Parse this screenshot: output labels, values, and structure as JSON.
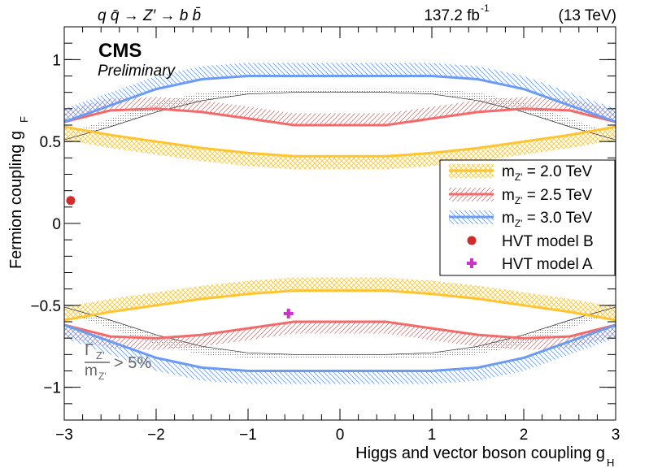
{
  "header": {
    "process": "q q̄ → Z′ → b b̄",
    "lumi": "137.2 fb",
    "lumi_exp": "-1",
    "energy": "(13 TeV)",
    "cms": "CMS",
    "preliminary": "Preliminary"
  },
  "width_note": {
    "numerator": "Γ",
    "numerator_sub": "Z'",
    "denominator": "m",
    "denominator_sub": "Z'",
    "relation": "> 5%"
  },
  "chart_data": {
    "type": "line",
    "xlabel": "Higgs and vector boson coupling g",
    "xlabel_sub": "H",
    "ylabel": "Fermion coupling g",
    "ylabel_sub": "F",
    "xlim": [
      -3,
      3
    ],
    "ylim": [
      -1.2,
      1.2
    ],
    "x_ticks": [
      -3,
      -2,
      -1,
      0,
      1,
      2,
      3
    ],
    "y_ticks": [
      -1,
      -0.5,
      0,
      0.5,
      1
    ],
    "x_tick_labels": [
      "−3",
      "−2",
      "−1",
      "0",
      "1",
      "2",
      "3"
    ],
    "y_tick_labels": [
      "−1",
      "−0.5",
      "0",
      "0.5",
      "1"
    ],
    "grid": false,
    "legend_position": "right",
    "series": [
      {
        "name": "m_Z' = 2.0 TeV",
        "color": "#ffc42e",
        "hatch": "cross",
        "x": [
          -3,
          -2.5,
          -2,
          -1.5,
          -1,
          -0.5,
          0,
          0.5,
          1,
          1.5,
          2,
          2.5,
          3
        ],
        "upper": [
          0.59,
          0.54,
          0.5,
          0.46,
          0.43,
          0.41,
          0.41,
          0.41,
          0.43,
          0.46,
          0.5,
          0.54,
          0.59
        ],
        "lower": [
          -0.59,
          -0.54,
          -0.5,
          -0.46,
          -0.43,
          -0.41,
          -0.41,
          -0.41,
          -0.43,
          -0.46,
          -0.5,
          -0.54,
          -0.59
        ]
      },
      {
        "name": "m_Z' = 2.5 TeV",
        "color": "#f46a6a",
        "hatch": "diagonal",
        "x": [
          -3,
          -2.5,
          -2,
          -1.5,
          -1,
          -0.5,
          0,
          0.5,
          1,
          1.5,
          2,
          2.5,
          3
        ],
        "upper": [
          0.62,
          0.69,
          0.7,
          0.68,
          0.64,
          0.6,
          0.6,
          0.6,
          0.64,
          0.68,
          0.7,
          0.69,
          0.62
        ],
        "lower": [
          -0.62,
          -0.69,
          -0.7,
          -0.68,
          -0.64,
          -0.6,
          -0.6,
          -0.6,
          -0.64,
          -0.68,
          -0.7,
          -0.69,
          -0.62
        ]
      },
      {
        "name": "m_Z' = 3.0 TeV",
        "color": "#6b9bf2",
        "hatch": "diagonal-reverse",
        "x": [
          -3,
          -2.5,
          -2,
          -1.5,
          -1,
          -0.5,
          0,
          0.5,
          1,
          1.5,
          2,
          2.5,
          3
        ],
        "upper": [
          0.62,
          0.72,
          0.82,
          0.88,
          0.9,
          0.9,
          0.9,
          0.9,
          0.9,
          0.88,
          0.82,
          0.72,
          0.62
        ],
        "lower": [
          -0.62,
          -0.72,
          -0.82,
          -0.88,
          -0.9,
          -0.9,
          -0.9,
          -0.9,
          -0.9,
          -0.88,
          -0.82,
          -0.72,
          -0.62
        ]
      }
    ],
    "width_contour": {
      "x": [
        -3,
        -2.5,
        -2,
        -1.5,
        -1,
        -0.5,
        0,
        0.5,
        1,
        1.5,
        2,
        2.5,
        3
      ],
      "upper": [
        0.51,
        0.59,
        0.68,
        0.75,
        0.79,
        0.8,
        0.8,
        0.8,
        0.79,
        0.75,
        0.68,
        0.59,
        0.51
      ],
      "lower": [
        -0.51,
        -0.59,
        -0.68,
        -0.75,
        -0.79,
        -0.8,
        -0.8,
        -0.8,
        -0.79,
        -0.75,
        -0.68,
        -0.59,
        -0.51
      ]
    },
    "points": [
      {
        "name": "HVT model B",
        "x": -2.93,
        "y": 0.14,
        "color": "#d12b2b",
        "marker": "circle"
      },
      {
        "name": "HVT model A",
        "x": -0.56,
        "y": -0.55,
        "color": "#cc33cc",
        "marker": "cross"
      }
    ],
    "legend": [
      {
        "label": "m",
        "sub": "Z'",
        "rest": " = 2.0 TeV",
        "kind": "band",
        "color": "#ffc42e"
      },
      {
        "label": "m",
        "sub": "Z'",
        "rest": " = 2.5 TeV",
        "kind": "band",
        "color": "#f46a6a"
      },
      {
        "label": "m",
        "sub": "Z'",
        "rest": " = 3.0 TeV",
        "kind": "band",
        "color": "#6b9bf2"
      },
      {
        "label": "HVT model B",
        "sub": "",
        "rest": "",
        "kind": "circle",
        "color": "#d12b2b"
      },
      {
        "label": "HVT model A",
        "sub": "",
        "rest": "",
        "kind": "cross",
        "color": "#cc33cc"
      }
    ]
  }
}
